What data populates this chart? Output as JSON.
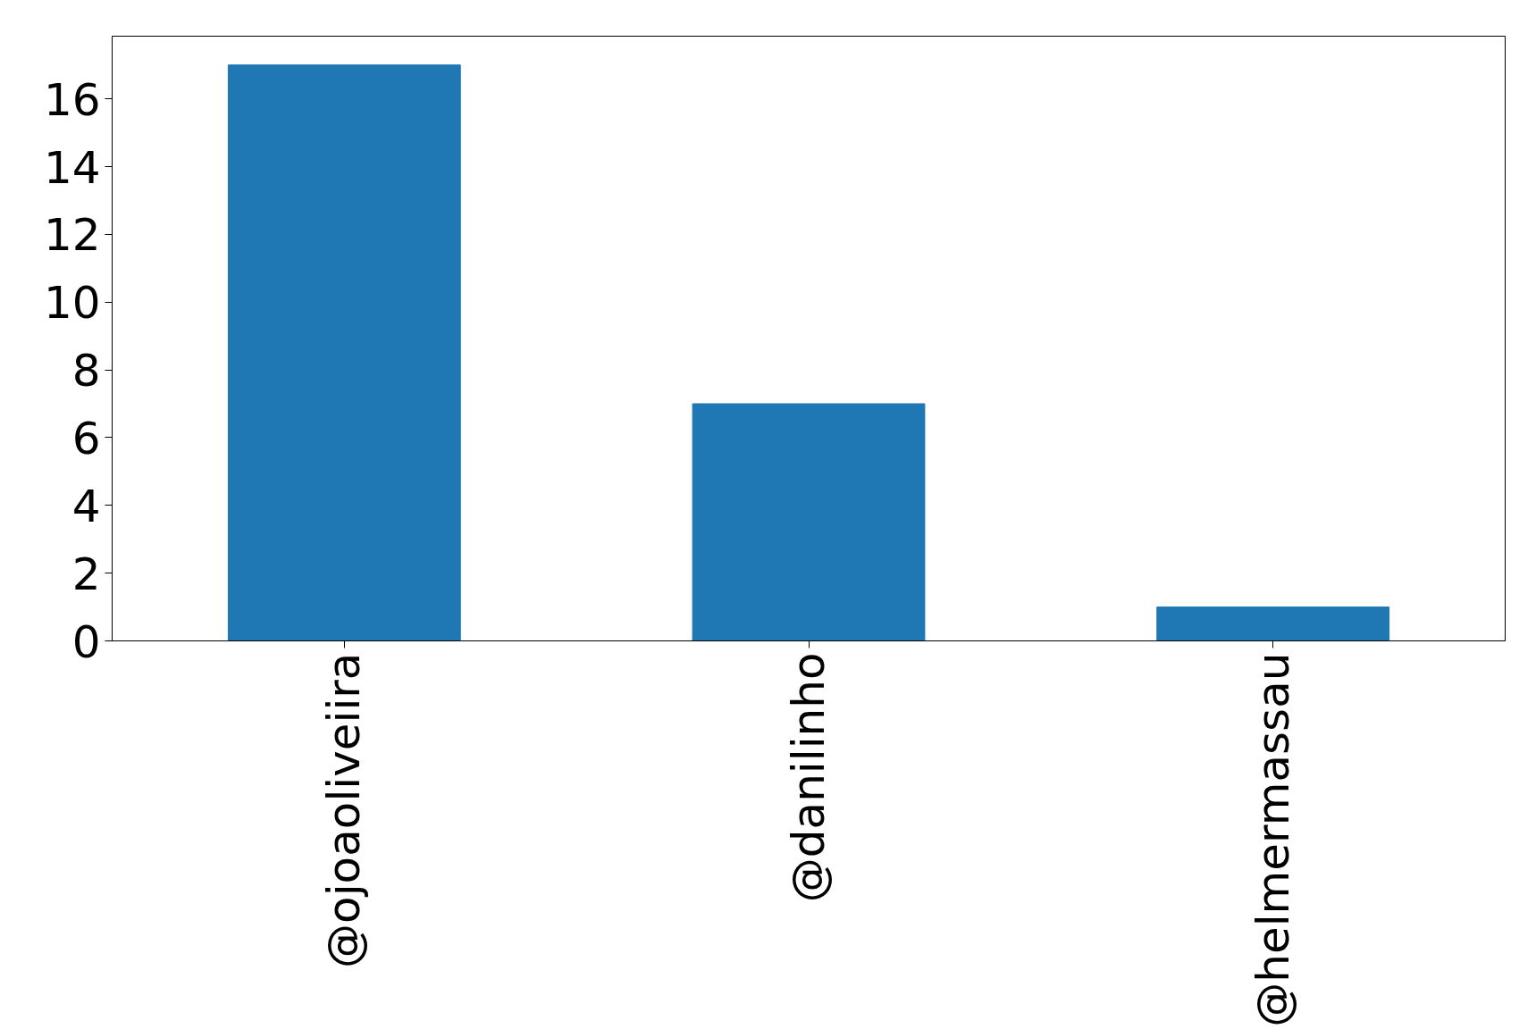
{
  "chart_data": {
    "type": "bar",
    "categories": [
      "@ojoaoliveiira",
      "@danilinho",
      "@helmermassau"
    ],
    "values": [
      17,
      7,
      1
    ],
    "color": "#1f77b4",
    "ylim": [
      0,
      17.85
    ],
    "yticks": [
      0,
      2,
      4,
      6,
      8,
      10,
      12,
      14,
      16
    ]
  }
}
